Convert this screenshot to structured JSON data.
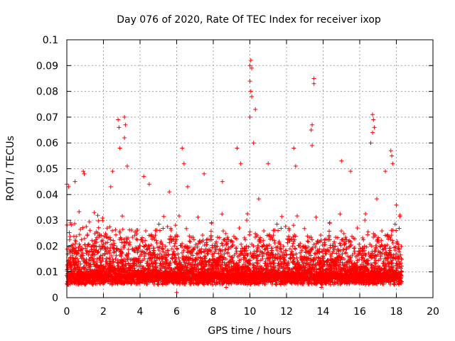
{
  "chart_data": {
    "type": "scatter",
    "title": "Day 076 of 2020, Rate Of TEC Index for receiver ixop",
    "xlabel": "GPS time / hours",
    "ylabel": "ROTI / TECUs",
    "xlim": [
      0,
      20
    ],
    "ylim": [
      0,
      0.1
    ],
    "xticks": [
      0,
      2,
      4,
      6,
      8,
      10,
      12,
      14,
      16,
      18,
      20
    ],
    "xtick_labels": [
      "0",
      "2",
      "4",
      "6",
      "8",
      "10",
      "12",
      "14",
      "16",
      "18",
      "20"
    ],
    "yticks": [
      0,
      0.01,
      0.02,
      0.03,
      0.04,
      0.05,
      0.06,
      0.07,
      0.08,
      0.09,
      0.1
    ],
    "ytick_labels": [
      "0",
      "0.01",
      "0.02",
      "0.03",
      "0.04",
      "0.05",
      "0.06",
      "0.07",
      "0.08",
      "0.09",
      "0.1"
    ],
    "grid": true,
    "marker": "+",
    "series": [
      {
        "name": "ROTI",
        "color": "#ff0000",
        "x_range": [
          0,
          18.3
        ],
        "sample_step_hours": 0.01,
        "typical_range": [
          0.005,
          0.03
        ],
        "notable_points": [
          {
            "x": 0.0,
            "y": 0.044
          },
          {
            "x": 0.1,
            "y": 0.043
          },
          {
            "x": 0.2,
            "y": 0.029
          },
          {
            "x": 0.45,
            "y": 0.045
          },
          {
            "x": 0.9,
            "y": 0.049
          },
          {
            "x": 0.95,
            "y": 0.048
          },
          {
            "x": 1.5,
            "y": 0.033
          },
          {
            "x": 2.4,
            "y": 0.043
          },
          {
            "x": 2.5,
            "y": 0.049
          },
          {
            "x": 2.8,
            "y": 0.069
          },
          {
            "x": 2.85,
            "y": 0.066
          },
          {
            "x": 2.9,
            "y": 0.058
          },
          {
            "x": 3.15,
            "y": 0.07
          },
          {
            "x": 3.2,
            "y": 0.067
          },
          {
            "x": 3.15,
            "y": 0.062
          },
          {
            "x": 3.3,
            "y": 0.051
          },
          {
            "x": 4.2,
            "y": 0.047
          },
          {
            "x": 4.5,
            "y": 0.044
          },
          {
            "x": 5.6,
            "y": 0.041
          },
          {
            "x": 6.3,
            "y": 0.058
          },
          {
            "x": 6.4,
            "y": 0.052
          },
          {
            "x": 6.6,
            "y": 0.043
          },
          {
            "x": 7.5,
            "y": 0.048
          },
          {
            "x": 8.5,
            "y": 0.045
          },
          {
            "x": 9.3,
            "y": 0.058
          },
          {
            "x": 9.5,
            "y": 0.052
          },
          {
            "x": 10.0,
            "y": 0.09
          },
          {
            "x": 10.05,
            "y": 0.092
          },
          {
            "x": 10.1,
            "y": 0.089
          },
          {
            "x": 10.0,
            "y": 0.084
          },
          {
            "x": 10.05,
            "y": 0.08
          },
          {
            "x": 10.1,
            "y": 0.078
          },
          {
            "x": 10.3,
            "y": 0.073
          },
          {
            "x": 10.0,
            "y": 0.07
          },
          {
            "x": 10.2,
            "y": 0.06
          },
          {
            "x": 11.0,
            "y": 0.052
          },
          {
            "x": 12.4,
            "y": 0.058
          },
          {
            "x": 12.5,
            "y": 0.051
          },
          {
            "x": 13.35,
            "y": 0.065
          },
          {
            "x": 13.4,
            "y": 0.067
          },
          {
            "x": 13.4,
            "y": 0.059
          },
          {
            "x": 13.5,
            "y": 0.085
          },
          {
            "x": 13.5,
            "y": 0.083
          },
          {
            "x": 15.0,
            "y": 0.053
          },
          {
            "x": 15.5,
            "y": 0.049
          },
          {
            "x": 16.7,
            "y": 0.071
          },
          {
            "x": 16.75,
            "y": 0.069
          },
          {
            "x": 16.7,
            "y": 0.064
          },
          {
            "x": 16.8,
            "y": 0.066
          },
          {
            "x": 16.6,
            "y": 0.06
          },
          {
            "x": 17.4,
            "y": 0.049
          },
          {
            "x": 17.7,
            "y": 0.057
          },
          {
            "x": 17.75,
            "y": 0.055
          },
          {
            "x": 17.8,
            "y": 0.052
          },
          {
            "x": 18.0,
            "y": 0.036
          },
          {
            "x": 18.2,
            "y": 0.032
          },
          {
            "x": 6.0,
            "y": 0.002
          },
          {
            "x": 8.7,
            "y": 0.004
          },
          {
            "x": 13.9,
            "y": 0.004
          }
        ]
      }
    ]
  }
}
